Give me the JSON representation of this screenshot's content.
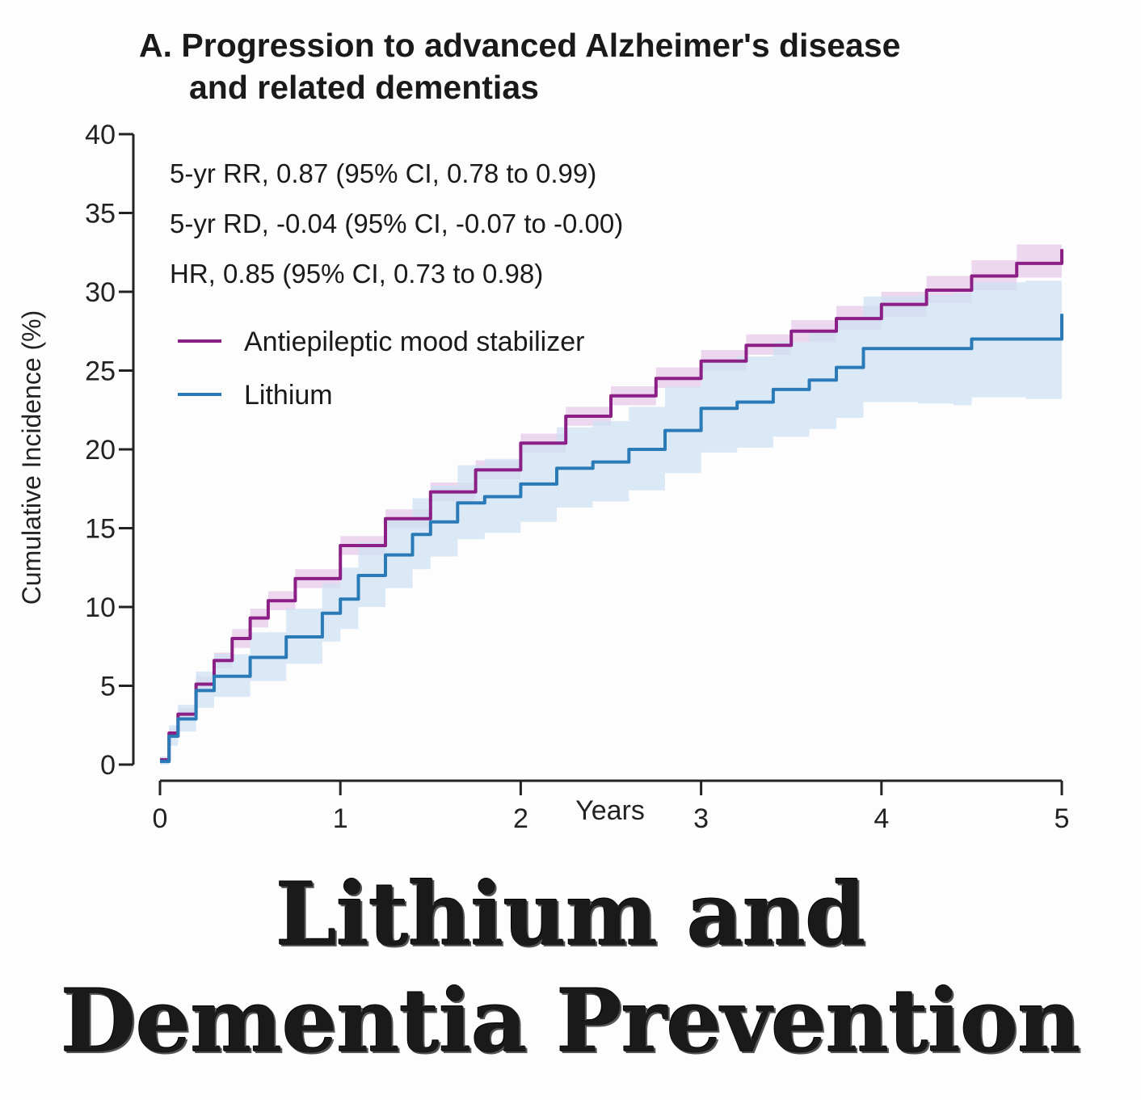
{
  "chart_data": {
    "type": "line",
    "title_line1": "A. Progression to advanced Alzheimer's disease",
    "title_line2": "and related dementias",
    "xlabel": "Years",
    "ylabel": "Cumulative Incidence (%)",
    "xlim": [
      0,
      5
    ],
    "ylim": [
      0,
      40
    ],
    "xticks": [
      "0",
      "1",
      "2",
      "3",
      "4",
      "5"
    ],
    "yticks": [
      "0",
      "5",
      "10",
      "15",
      "20",
      "25",
      "30",
      "35",
      "40"
    ],
    "grid": false,
    "legend_position": "top-left",
    "annotations": [
      "5-yr RR, 0.87 (95% CI, 0.78 to 0.99)",
      "5-yr RD, -0.04 (95% CI, -0.07 to -0.00)",
      "HR, 0.85 (95% CI, 0.73 to 0.98)"
    ],
    "series": [
      {
        "name": "Antiepileptic mood stabilizer",
        "color": "#8b1f86",
        "band_color": "#e6c9ea",
        "x": [
          0,
          0.05,
          0.1,
          0.2,
          0.3,
          0.4,
          0.5,
          0.6,
          0.75,
          1.0,
          1.25,
          1.5,
          1.75,
          2.0,
          2.25,
          2.5,
          2.75,
          3.0,
          3.25,
          3.5,
          3.75,
          4.0,
          4.25,
          4.5,
          4.75,
          5.0
        ],
        "y": [
          0.3,
          2.0,
          3.2,
          5.1,
          6.6,
          8.0,
          9.3,
          10.4,
          11.8,
          13.9,
          15.6,
          17.3,
          18.7,
          20.4,
          22.1,
          23.4,
          24.5,
          25.6,
          26.6,
          27.5,
          28.3,
          29.2,
          30.1,
          31.0,
          31.8,
          32.7
        ],
        "lower": [
          0.1,
          1.7,
          2.8,
          4.6,
          6.1,
          7.4,
          8.7,
          9.8,
          11.2,
          13.3,
          15.0,
          16.7,
          18.1,
          19.8,
          21.5,
          22.8,
          23.9,
          25.0,
          26.0,
          26.8,
          27.6,
          28.4,
          29.3,
          30.1,
          30.9,
          31.6
        ],
        "upper": [
          0.5,
          2.3,
          3.6,
          5.6,
          7.1,
          8.6,
          9.9,
          11.0,
          12.4,
          14.5,
          16.2,
          17.9,
          19.3,
          21.0,
          22.7,
          24.0,
          25.2,
          26.3,
          27.3,
          28.2,
          29.1,
          30.0,
          31.0,
          32.0,
          33.0,
          34.0
        ]
      },
      {
        "name": "Lithium",
        "color": "#2a7ab8",
        "band_color": "#cfe1f3",
        "x": [
          0,
          0.05,
          0.1,
          0.2,
          0.3,
          0.5,
          0.7,
          0.9,
          1.0,
          1.1,
          1.25,
          1.4,
          1.5,
          1.65,
          1.8,
          2.0,
          2.2,
          2.4,
          2.6,
          2.8,
          3.0,
          3.2,
          3.4,
          3.6,
          3.75,
          3.9,
          4.2,
          4.4,
          4.5,
          4.8,
          5.0
        ],
        "y": [
          0.2,
          1.8,
          2.9,
          4.7,
          5.6,
          6.8,
          8.1,
          9.6,
          10.5,
          12.0,
          13.3,
          14.6,
          15.4,
          16.6,
          17.0,
          17.8,
          18.8,
          19.2,
          20.0,
          21.2,
          22.6,
          23.0,
          23.8,
          24.4,
          25.2,
          26.4,
          26.4,
          26.4,
          27.0,
          27.0,
          28.6
        ],
        "lower": [
          0.0,
          1.2,
          2.1,
          3.6,
          4.3,
          5.3,
          6.4,
          7.8,
          8.6,
          10.0,
          11.2,
          12.4,
          13.2,
          14.3,
          14.7,
          15.4,
          16.3,
          16.7,
          17.4,
          18.5,
          19.8,
          20.1,
          20.8,
          21.3,
          22.0,
          23.0,
          22.9,
          22.8,
          23.3,
          23.2,
          24.5
        ],
        "upper": [
          0.5,
          2.5,
          3.8,
          5.9,
          7.0,
          8.4,
          9.9,
          11.5,
          12.5,
          14.1,
          15.5,
          16.9,
          17.7,
          19.0,
          19.4,
          20.3,
          21.4,
          21.8,
          22.7,
          24.0,
          25.5,
          25.9,
          26.8,
          27.5,
          28.4,
          29.7,
          29.8,
          29.9,
          30.6,
          30.7,
          32.6
        ]
      }
    ]
  },
  "caption": {
    "line1": "Lithium and",
    "line2": "Dementia Prevention"
  }
}
